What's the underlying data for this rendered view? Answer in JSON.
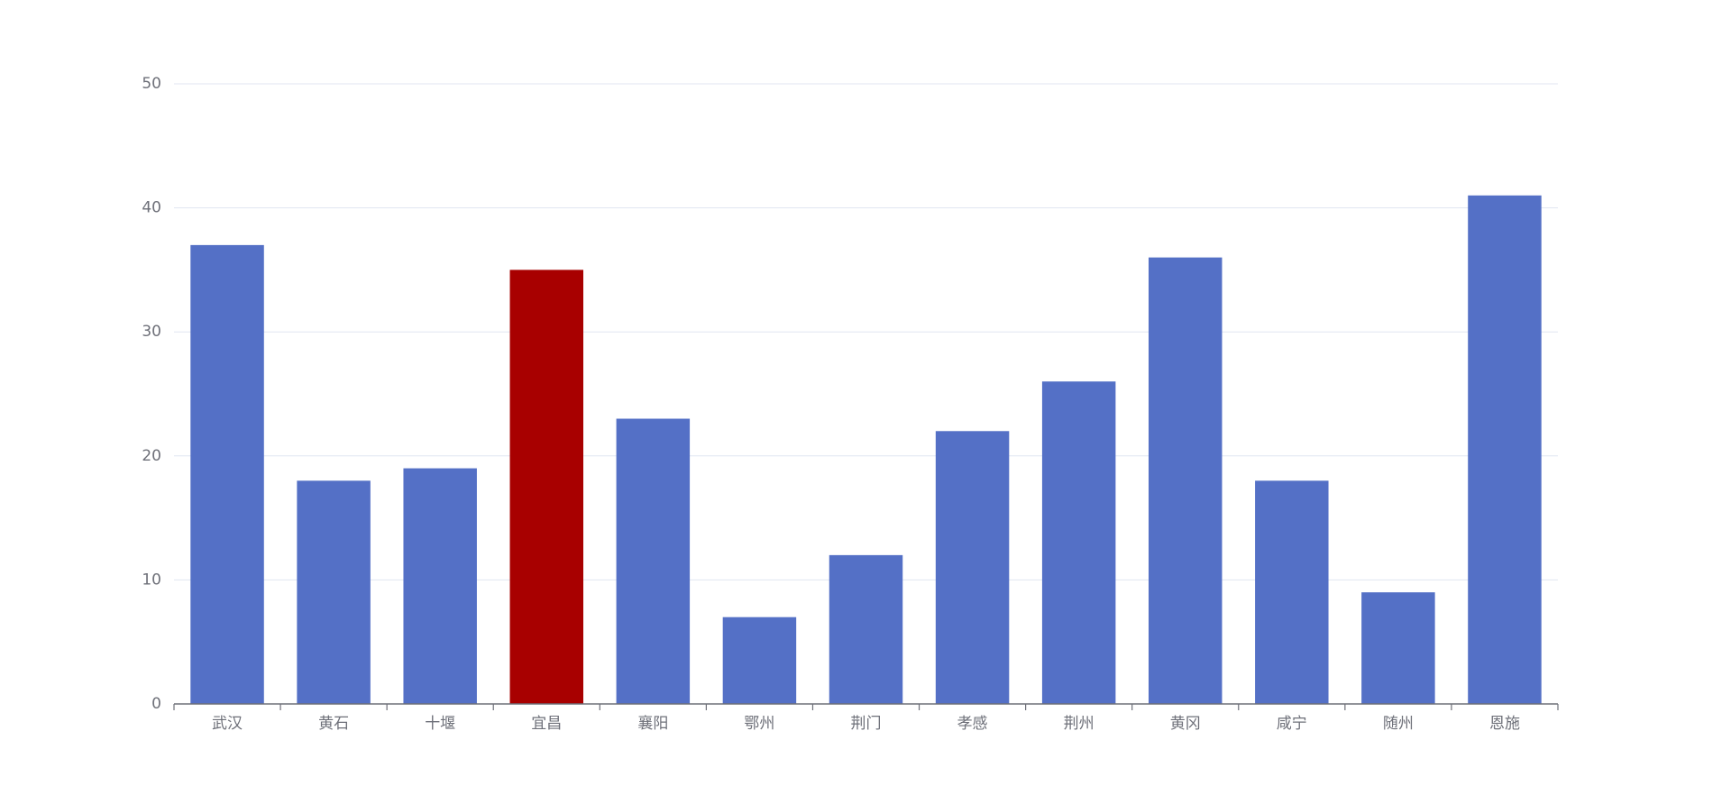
{
  "chart_data": {
    "type": "bar",
    "categories": [
      "武汉",
      "黄石",
      "十堰",
      "宜昌",
      "襄阳",
      "鄂州",
      "荆门",
      "孝感",
      "荆州",
      "黄冈",
      "咸宁",
      "随州",
      "恩施"
    ],
    "values": [
      37,
      18,
      19,
      35,
      23,
      7,
      12,
      22,
      26,
      36,
      18,
      9,
      41
    ],
    "colors": [
      "#5470c6",
      "#5470c6",
      "#5470c6",
      "#a80000",
      "#5470c6",
      "#5470c6",
      "#5470c6",
      "#5470c6",
      "#5470c6",
      "#5470c6",
      "#5470c6",
      "#5470c6",
      "#5470c6"
    ],
    "ylim": [
      0,
      50
    ],
    "yticks": [
      0,
      10,
      20,
      30,
      40,
      50
    ],
    "grid": true
  }
}
